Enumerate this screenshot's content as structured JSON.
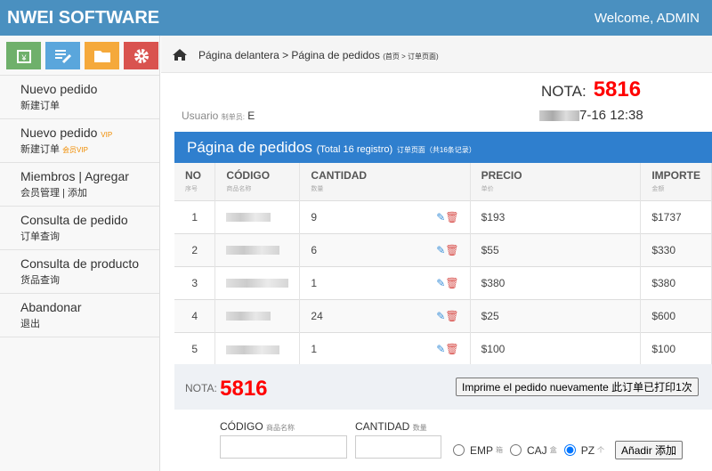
{
  "header": {
    "brand": "NWEI SOFTWARE",
    "welcome": "Welcome, ADMIN"
  },
  "sidebar": {
    "icon_buttons": [
      {
        "icon": "calendar-yen-icon",
        "color": "#6fb06b"
      },
      {
        "icon": "edit-list-icon",
        "color": "#5aa6dc"
      },
      {
        "icon": "folder-icon",
        "color": "#f5a93b"
      },
      {
        "icon": "gear-icon",
        "color": "#d9534f"
      }
    ],
    "items": [
      {
        "label": "Nuevo pedido",
        "sub": "新建订单"
      },
      {
        "label": "Nuevo pedido",
        "vip": "VIP",
        "sub": "新建订单",
        "sub_vip": "会员VIP"
      },
      {
        "label": "Miembros | Agregar",
        "sub": "会员管理 | 添加"
      },
      {
        "label": "Consulta de pedido",
        "sub": "订单查询"
      },
      {
        "label": "Consulta de producto",
        "sub": "货品查询"
      },
      {
        "label": "Abandonar",
        "sub": "退出"
      }
    ]
  },
  "breadcrumb": {
    "text": "Página delantera > Página de pedidos",
    "sub": "(首页 > 订单页面)"
  },
  "info": {
    "nota_label": "NOTA:",
    "nota": "5816",
    "date": "7-16 12:38",
    "user_label": "Usuario",
    "user_sub": "制单员:",
    "user": "E"
  },
  "panel": {
    "title": "Página de pedidos",
    "total": "(Total 16 registro)",
    "sub": "订单页面（共16条记录）"
  },
  "table": {
    "columns": [
      {
        "label": "NO",
        "sub": "序号"
      },
      {
        "label": "CÓDIGO",
        "sub": "商品名称"
      },
      {
        "label": "CANTIDAD",
        "sub": "数量"
      },
      {
        "label": "PRECIO",
        "sub": "单价"
      },
      {
        "label": "IMPORTE",
        "sub": "金额"
      }
    ],
    "rows": [
      {
        "no": "1",
        "qty": "9",
        "price": "$193",
        "amount": "$1737"
      },
      {
        "no": "2",
        "qty": "6",
        "price": "$55",
        "amount": "$330"
      },
      {
        "no": "3",
        "qty": "1",
        "price": "$380",
        "amount": "$380"
      },
      {
        "no": "4",
        "qty": "24",
        "price": "$25",
        "amount": "$600"
      },
      {
        "no": "5",
        "qty": "1",
        "price": "$100",
        "amount": "$100"
      }
    ]
  },
  "footer": {
    "nota_label": "NOTA:",
    "nota": "5816",
    "reprint": "Imprime el pedido nuevamente 此订单已打印1次"
  },
  "form": {
    "code_label": "CÓDIGO",
    "code_sub": "商品名称",
    "qty_label": "CANTIDAD",
    "qty_sub": "数量",
    "units": [
      {
        "label": "EMP",
        "sub": "箱",
        "checked": false
      },
      {
        "label": "CAJ",
        "sub": "盒",
        "checked": false
      },
      {
        "label": "PZ",
        "sub": "个",
        "checked": true
      }
    ],
    "add": "Añadir 添加"
  }
}
